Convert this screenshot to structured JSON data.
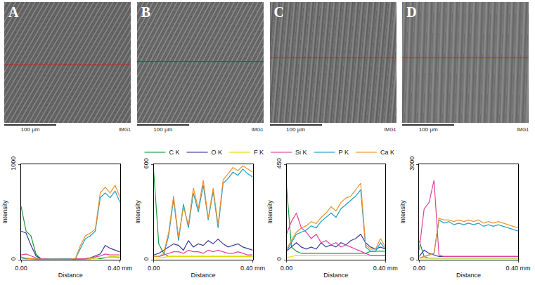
{
  "panels": [
    {
      "label": "A",
      "scale_bar": "100 μm",
      "tag": "IMG1"
    },
    {
      "label": "B",
      "scale_bar": "100 μm",
      "tag": "IMG1"
    },
    {
      "label": "C",
      "scale_bar": "100 μm",
      "tag": "IMG1"
    },
    {
      "label": "D",
      "scale_bar": "100 μm",
      "tag": "IMG1"
    }
  ],
  "chart_data": [
    {
      "type": "line",
      "x_label": "Distance",
      "y_label": "Intensity",
      "grid": false,
      "legend": "top",
      "x": [
        0,
        0.02,
        0.04,
        0.06,
        0.08,
        0.1,
        0.12,
        0.14,
        0.16,
        0.18,
        0.2,
        0.22,
        0.24,
        0.26,
        0.28,
        0.3,
        0.32,
        0.34,
        0.36,
        0.38,
        0.4
      ],
      "xlim": [
        0,
        0.4
      ],
      "xticks": [
        {
          "value": 0,
          "label": "0.00"
        },
        {
          "value": 0.4,
          "label": "0.40 mm"
        }
      ],
      "ylim": [
        0,
        1000
      ],
      "yticks": [
        0,
        1000
      ],
      "series": [
        {
          "name": "C K",
          "color": "#1a9c3c",
          "values": [
            560,
            300,
            250,
            60,
            10,
            5,
            5,
            5,
            5,
            5,
            5,
            5,
            5,
            10,
            10,
            20,
            10,
            20,
            30,
            30,
            20
          ]
        },
        {
          "name": "O K",
          "color": "#3a3a9a",
          "values": [
            300,
            280,
            150,
            40,
            10,
            5,
            5,
            5,
            5,
            5,
            5,
            5,
            10,
            10,
            20,
            40,
            60,
            150,
            120,
            100,
            80
          ]
        },
        {
          "name": "F K",
          "color": "#e6dc00",
          "values": [
            20,
            20,
            15,
            10,
            5,
            5,
            5,
            5,
            5,
            5,
            5,
            5,
            5,
            5,
            10,
            15,
            20,
            30,
            30,
            30,
            30
          ]
        },
        {
          "name": "Si K",
          "color": "#e0409c",
          "values": [
            50,
            60,
            40,
            20,
            10,
            5,
            5,
            5,
            5,
            5,
            5,
            5,
            5,
            10,
            20,
            30,
            40,
            60,
            50,
            50,
            50
          ]
        },
        {
          "name": "P K",
          "color": "#1ca0c8",
          "values": [
            20,
            10,
            10,
            5,
            5,
            5,
            5,
            5,
            5,
            5,
            5,
            10,
            120,
            220,
            250,
            300,
            650,
            700,
            650,
            720,
            600
          ]
        },
        {
          "name": "Ca K",
          "color": "#f0902c",
          "values": [
            30,
            15,
            10,
            5,
            5,
            5,
            5,
            5,
            5,
            5,
            5,
            15,
            150,
            250,
            280,
            320,
            700,
            760,
            700,
            780,
            650
          ]
        }
      ]
    },
    {
      "type": "line",
      "x_label": "Distance",
      "y_label": "Intensity",
      "grid": false,
      "legend": "top",
      "x": [
        0,
        0.02,
        0.04,
        0.06,
        0.08,
        0.1,
        0.12,
        0.14,
        0.16,
        0.18,
        0.2,
        0.22,
        0.24,
        0.26,
        0.28,
        0.3,
        0.32,
        0.34,
        0.36,
        0.38,
        0.4
      ],
      "xlim": [
        0,
        0.4
      ],
      "xticks": [
        {
          "value": 0,
          "label": "0.00"
        },
        {
          "value": 0.4,
          "label": "0.40 mm"
        }
      ],
      "ylim": [
        0,
        600
      ],
      "yticks": [
        0,
        600
      ],
      "series": [
        {
          "name": "C K",
          "color": "#1a9c3c",
          "values": [
            550,
            100,
            40,
            20,
            20,
            20,
            20,
            20,
            20,
            20,
            20,
            20,
            20,
            20,
            20,
            20,
            20,
            20,
            20,
            20,
            20
          ]
        },
        {
          "name": "O K",
          "color": "#3a3a9a",
          "values": [
            30,
            40,
            60,
            80,
            100,
            90,
            60,
            120,
            80,
            100,
            90,
            120,
            100,
            130,
            100,
            80,
            90,
            100,
            80,
            70,
            60
          ]
        },
        {
          "name": "F K",
          "color": "#e6dc00",
          "values": [
            10,
            10,
            15,
            20,
            20,
            20,
            20,
            20,
            20,
            20,
            20,
            20,
            20,
            20,
            20,
            20,
            20,
            20,
            20,
            20,
            20
          ]
        },
        {
          "name": "Si K",
          "color": "#e0409c",
          "values": [
            20,
            20,
            30,
            40,
            50,
            50,
            40,
            60,
            50,
            50,
            40,
            60,
            50,
            60,
            50,
            40,
            40,
            50,
            40,
            30,
            30
          ]
        },
        {
          "name": "P K",
          "color": "#1ca0c8",
          "values": [
            20,
            20,
            30,
            150,
            380,
            120,
            350,
            200,
            420,
            300,
            470,
            250,
            430,
            200,
            480,
            510,
            550,
            530,
            570,
            540,
            520
          ]
        },
        {
          "name": "Ca K",
          "color": "#f0902c",
          "values": [
            20,
            20,
            40,
            170,
            400,
            140,
            330,
            220,
            450,
            320,
            500,
            260,
            450,
            220,
            500,
            540,
            580,
            560,
            590,
            570,
            550
          ]
        }
      ]
    },
    {
      "type": "line",
      "x_label": "Distance",
      "y_label": "Intensity",
      "grid": false,
      "legend": "top",
      "x": [
        0,
        0.02,
        0.04,
        0.06,
        0.08,
        0.1,
        0.12,
        0.14,
        0.16,
        0.18,
        0.2,
        0.22,
        0.24,
        0.26,
        0.28,
        0.3,
        0.32,
        0.34,
        0.36,
        0.38,
        0.4
      ],
      "xlim": [
        0,
        0.4
      ],
      "xticks": [
        {
          "value": 0,
          "label": "0.00"
        },
        {
          "value": 0.4,
          "label": "0.40 mm"
        }
      ],
      "ylim": [
        0,
        450
      ],
      "yticks": [
        0,
        450
      ],
      "series": [
        {
          "name": "C K",
          "color": "#1a9c3c",
          "values": [
            350,
            60,
            40,
            30,
            30,
            30,
            30,
            30,
            30,
            30,
            30,
            30,
            30,
            30,
            30,
            30,
            30,
            40,
            40,
            40,
            40
          ]
        },
        {
          "name": "O K",
          "color": "#3a3a9a",
          "values": [
            40,
            60,
            80,
            60,
            50,
            60,
            50,
            80,
            60,
            70,
            60,
            80,
            70,
            90,
            100,
            120,
            80,
            60,
            50,
            60,
            50
          ]
        },
        {
          "name": "F K",
          "color": "#e6dc00",
          "values": [
            10,
            15,
            20,
            20,
            20,
            20,
            20,
            20,
            20,
            20,
            20,
            20,
            20,
            20,
            20,
            20,
            20,
            20,
            20,
            20,
            20
          ]
        },
        {
          "name": "Si K",
          "color": "#e0409c",
          "values": [
            120,
            180,
            220,
            150,
            130,
            100,
            120,
            80,
            90,
            70,
            80,
            60,
            70,
            60,
            50,
            40,
            30,
            20,
            20,
            20,
            20
          ]
        },
        {
          "name": "P K",
          "color": "#1ca0c8",
          "values": [
            40,
            80,
            120,
            130,
            140,
            160,
            150,
            180,
            200,
            220,
            200,
            240,
            260,
            280,
            300,
            330,
            60,
            40,
            40,
            80,
            50
          ]
        },
        {
          "name": "Ca K",
          "color": "#f0902c",
          "values": [
            50,
            90,
            130,
            150,
            160,
            180,
            170,
            200,
            220,
            250,
            230,
            270,
            290,
            300,
            330,
            360,
            70,
            50,
            50,
            100,
            60
          ]
        }
      ]
    },
    {
      "type": "line",
      "x_label": "Distance",
      "y_label": "Intensity",
      "grid": false,
      "legend": "top",
      "x": [
        0,
        0.02,
        0.04,
        0.06,
        0.08,
        0.1,
        0.12,
        0.14,
        0.16,
        0.18,
        0.2,
        0.22,
        0.24,
        0.26,
        0.28,
        0.3,
        0.32,
        0.34,
        0.36,
        0.38,
        0.4
      ],
      "xlim": [
        0,
        0.4
      ],
      "xticks": [
        {
          "value": 0,
          "label": "0.00"
        },
        {
          "value": 0.4,
          "label": "0.40 mm"
        }
      ],
      "ylim": [
        0,
        3000
      ],
      "yticks": [
        0,
        3000
      ],
      "series": [
        {
          "name": "C K",
          "color": "#1a9c3c",
          "values": [
            600,
            100,
            50,
            50,
            50,
            50,
            50,
            50,
            50,
            50,
            50,
            50,
            50,
            50,
            50,
            50,
            50,
            50,
            50,
            50,
            50
          ]
        },
        {
          "name": "O K",
          "color": "#3a3a9a",
          "values": [
            100,
            300,
            200,
            150,
            100,
            100,
            100,
            100,
            100,
            100,
            100,
            100,
            100,
            100,
            100,
            100,
            100,
            100,
            100,
            100,
            100
          ]
        },
        {
          "name": "F K",
          "color": "#e6dc00",
          "values": [
            50,
            50,
            50,
            50,
            50,
            50,
            50,
            50,
            50,
            50,
            50,
            50,
            50,
            50,
            50,
            50,
            50,
            50,
            50,
            50,
            50
          ]
        },
        {
          "name": "Si K",
          "color": "#e0409c",
          "values": [
            300,
            1600,
            1800,
            2500,
            150,
            100,
            100,
            100,
            100,
            100,
            100,
            100,
            100,
            100,
            100,
            100,
            100,
            100,
            100,
            100,
            100
          ]
        },
        {
          "name": "P K",
          "color": "#1ca0c8",
          "values": [
            50,
            100,
            150,
            200,
            1250,
            1150,
            1200,
            1100,
            1150,
            1100,
            1150,
            1100,
            1150,
            1050,
            1100,
            1050,
            1100,
            1050,
            1000,
            950,
            900
          ]
        },
        {
          "name": "Ca K",
          "color": "#f0902c",
          "values": [
            50,
            100,
            150,
            200,
            1300,
            1250,
            1250,
            1200,
            1250,
            1200,
            1250,
            1200,
            1250,
            1150,
            1200,
            1150,
            1200,
            1150,
            1100,
            1050,
            1000
          ]
        }
      ]
    }
  ]
}
